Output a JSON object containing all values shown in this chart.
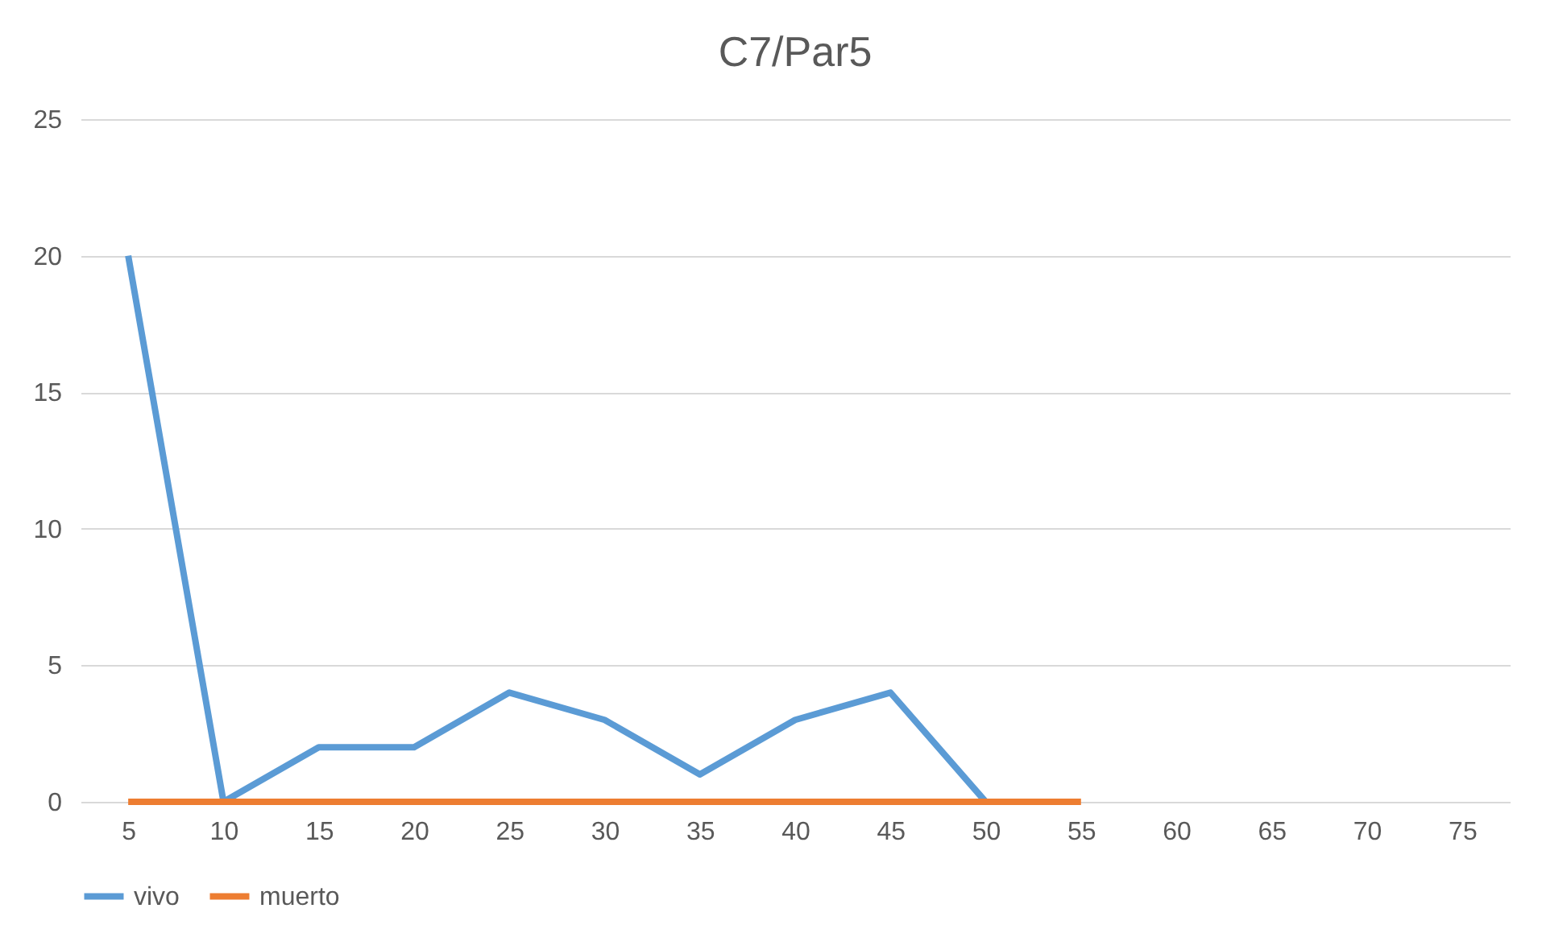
{
  "chart_data": {
    "type": "line",
    "title": "C7/Par5",
    "categories": [
      "5",
      "10",
      "15",
      "20",
      "25",
      "30",
      "35",
      "40",
      "45",
      "50",
      "55",
      "60",
      "65",
      "70",
      "75"
    ],
    "series": [
      {
        "name": "vivo",
        "color": "#5b9bd5",
        "values": [
          20,
          0,
          2,
          2,
          4,
          3,
          1,
          3,
          4,
          0,
          null,
          null,
          null,
          null,
          null
        ]
      },
      {
        "name": "muerto",
        "color": "#ed7d31",
        "values": [
          0,
          0,
          0,
          0,
          0,
          0,
          0,
          0,
          0,
          0,
          0,
          null,
          null,
          null,
          null
        ]
      }
    ],
    "ylim": [
      0,
      25
    ],
    "yticks": [
      0,
      5,
      10,
      15,
      20,
      25
    ],
    "grid": "y",
    "legend": "bottom"
  }
}
